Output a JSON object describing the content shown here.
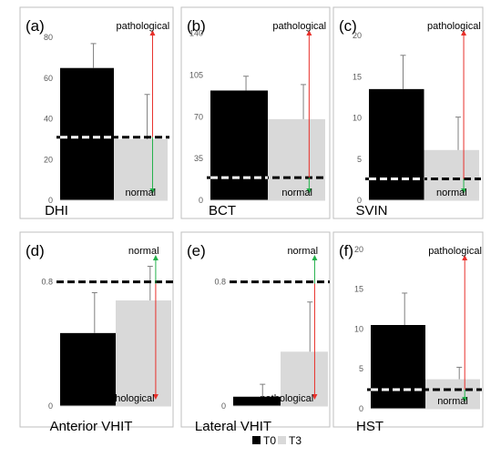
{
  "legend": {
    "items": [
      {
        "label": "T0",
        "color": "#000000"
      },
      {
        "label": "T3",
        "color": "#d9d9d9"
      }
    ]
  },
  "colors": {
    "t0": "#000000",
    "t3": "#d9d9d9",
    "pathological_arrow": "#e8302a",
    "normal_arrow": "#22b04a",
    "cutoff_line": "#000000"
  },
  "chart_data": [
    {
      "type": "bar",
      "panel_label": "(a)",
      "xlabel": "DHI",
      "categories": [
        "T0",
        "T3"
      ],
      "values": [
        65,
        30
      ],
      "error_upper": [
        77,
        52
      ],
      "ylim": [
        0,
        85
      ],
      "yticks": [
        0,
        20,
        40,
        60,
        80
      ],
      "cutoff": 31,
      "top_label": "pathological",
      "bottom_label": "normal",
      "top_label_color": "#e8302a",
      "bottom_label_color": "#22b04a"
    },
    {
      "type": "bar",
      "panel_label": "(b)",
      "xlabel": "BCT",
      "categories": [
        "T0",
        "T3"
      ],
      "values": [
        92,
        68
      ],
      "error_upper": [
        104,
        97
      ],
      "ylim": [
        0,
        145
      ],
      "yticks": [
        0,
        35,
        70,
        105,
        140
      ],
      "cutoff": 19,
      "top_label": "pathological",
      "bottom_label": "normal",
      "top_label_color": "#e8302a",
      "bottom_label_color": "#22b04a"
    },
    {
      "type": "bar",
      "panel_label": "(c)",
      "xlabel": "SVIN",
      "categories": [
        "T0",
        "T3"
      ],
      "values": [
        13.5,
        6.1
      ],
      "error_upper": [
        17.6,
        10.1
      ],
      "ylim": [
        0,
        21
      ],
      "yticks": [
        0,
        5,
        10,
        15,
        20
      ],
      "cutoff": 2.6,
      "top_label": "pathological",
      "bottom_label": "normal",
      "top_label_color": "#e8302a",
      "bottom_label_color": "#22b04a"
    },
    {
      "type": "bar",
      "panel_label": "(d)",
      "xlabel": "Anterior VHIT",
      "categories": [
        "T0",
        "T3"
      ],
      "values": [
        0.47,
        0.68
      ],
      "error_upper": [
        0.73,
        0.9
      ],
      "ylim": [
        0,
        0.95
      ],
      "yticks": [
        0,
        0.8
      ],
      "cutoff": 0.8,
      "top_label": "normal",
      "bottom_label": "pathological",
      "top_label_color": "#22b04a",
      "bottom_label_color": "#e8302a"
    },
    {
      "type": "bar",
      "panel_label": "(e)",
      "xlabel": "Lateral VHIT",
      "categories": [
        "T0",
        "T3"
      ],
      "values": [
        0.06,
        0.35
      ],
      "error_upper": [
        0.14,
        0.67
      ],
      "ylim": [
        0,
        0.95
      ],
      "yticks": [
        0,
        0.8
      ],
      "cutoff": 0.8,
      "top_label": "normal",
      "bottom_label": "pathological",
      "top_label_color": "#22b04a",
      "bottom_label_color": "#e8302a"
    },
    {
      "type": "bar",
      "panel_label": "(f)",
      "xlabel": "HST",
      "categories": [
        "T0",
        "T3"
      ],
      "values": [
        10.5,
        3.7
      ],
      "error_upper": [
        14.5,
        5.2
      ],
      "ylim": [
        0,
        21
      ],
      "yticks": [
        0,
        5,
        10,
        15,
        20
      ],
      "cutoff": 2.4,
      "top_label": "pathological",
      "bottom_label": "normal",
      "top_label_color": "#e8302a",
      "bottom_label_color": "#22b04a"
    }
  ]
}
